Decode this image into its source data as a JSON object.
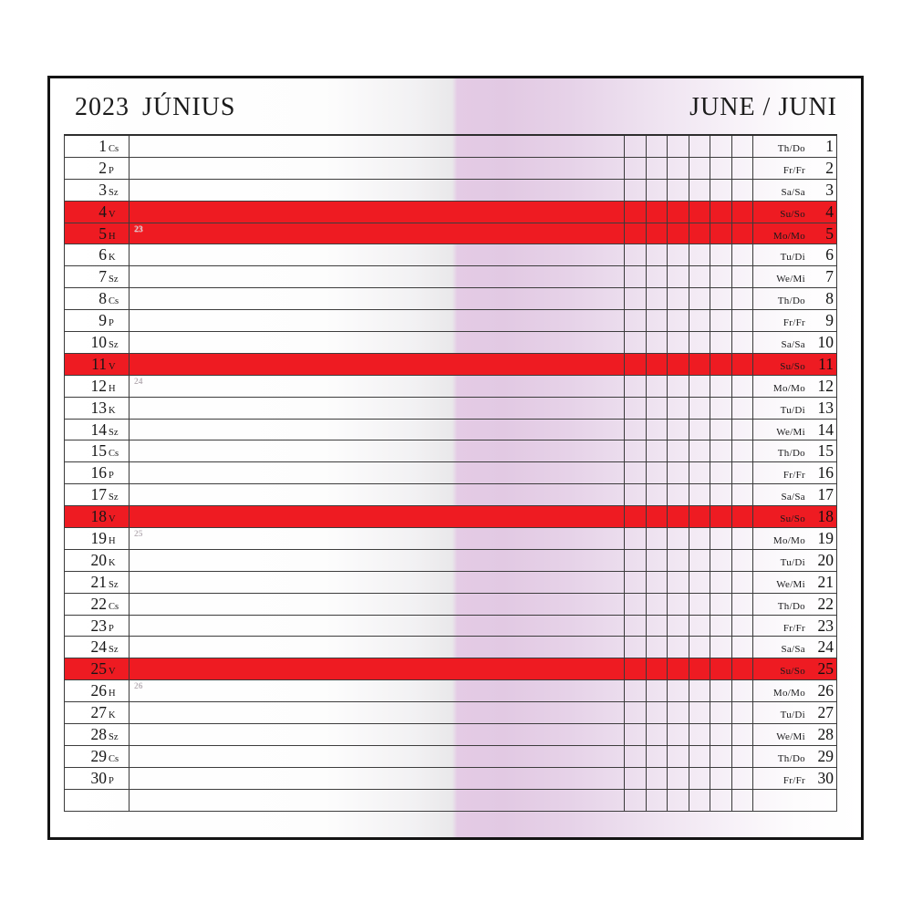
{
  "header": {
    "year": "2023",
    "month_hu": "JÚNIUS",
    "month_en_de": "JUNE / JUNI"
  },
  "colors": {
    "holiday_red": "#ee1b22",
    "fold_lavender": "#e3cae4",
    "grid_line": "#3a3a3a",
    "week_number_gray": "#b9b1b7"
  },
  "calendar": {
    "note_columns": 6,
    "trailing_blank_rows": 1,
    "rows": [
      {
        "day": "1",
        "hu": "Cs",
        "en_de": "Th/Do",
        "holiday": false,
        "week": null
      },
      {
        "day": "2",
        "hu": "P",
        "en_de": "Fr/Fr",
        "holiday": false,
        "week": null
      },
      {
        "day": "3",
        "hu": "Sz",
        "en_de": "Sa/Sa",
        "holiday": false,
        "week": null
      },
      {
        "day": "4",
        "hu": "V",
        "en_de": "Su/So",
        "holiday": true,
        "week": null
      },
      {
        "day": "5",
        "hu": "H",
        "en_de": "Mo/Mo",
        "holiday": true,
        "week": "23"
      },
      {
        "day": "6",
        "hu": "K",
        "en_de": "Tu/Di",
        "holiday": false,
        "week": null
      },
      {
        "day": "7",
        "hu": "Sz",
        "en_de": "We/Mi",
        "holiday": false,
        "week": null
      },
      {
        "day": "8",
        "hu": "Cs",
        "en_de": "Th/Do",
        "holiday": false,
        "week": null
      },
      {
        "day": "9",
        "hu": "P",
        "en_de": "Fr/Fr",
        "holiday": false,
        "week": null
      },
      {
        "day": "10",
        "hu": "Sz",
        "en_de": "Sa/Sa",
        "holiday": false,
        "week": null
      },
      {
        "day": "11",
        "hu": "V",
        "en_de": "Su/So",
        "holiday": true,
        "week": null
      },
      {
        "day": "12",
        "hu": "H",
        "en_de": "Mo/Mo",
        "holiday": false,
        "week": "24"
      },
      {
        "day": "13",
        "hu": "K",
        "en_de": "Tu/Di",
        "holiday": false,
        "week": null
      },
      {
        "day": "14",
        "hu": "Sz",
        "en_de": "We/Mi",
        "holiday": false,
        "week": null
      },
      {
        "day": "15",
        "hu": "Cs",
        "en_de": "Th/Do",
        "holiday": false,
        "week": null
      },
      {
        "day": "16",
        "hu": "P",
        "en_de": "Fr/Fr",
        "holiday": false,
        "week": null
      },
      {
        "day": "17",
        "hu": "Sz",
        "en_de": "Sa/Sa",
        "holiday": false,
        "week": null
      },
      {
        "day": "18",
        "hu": "V",
        "en_de": "Su/So",
        "holiday": true,
        "week": null
      },
      {
        "day": "19",
        "hu": "H",
        "en_de": "Mo/Mo",
        "holiday": false,
        "week": "25"
      },
      {
        "day": "20",
        "hu": "K",
        "en_de": "Tu/Di",
        "holiday": false,
        "week": null
      },
      {
        "day": "21",
        "hu": "Sz",
        "en_de": "We/Mi",
        "holiday": false,
        "week": null
      },
      {
        "day": "22",
        "hu": "Cs",
        "en_de": "Th/Do",
        "holiday": false,
        "week": null
      },
      {
        "day": "23",
        "hu": "P",
        "en_de": "Fr/Fr",
        "holiday": false,
        "week": null
      },
      {
        "day": "24",
        "hu": "Sz",
        "en_de": "Sa/Sa",
        "holiday": false,
        "week": null
      },
      {
        "day": "25",
        "hu": "V",
        "en_de": "Su/So",
        "holiday": true,
        "week": null
      },
      {
        "day": "26",
        "hu": "H",
        "en_de": "Mo/Mo",
        "holiday": false,
        "week": "26"
      },
      {
        "day": "27",
        "hu": "K",
        "en_de": "Tu/Di",
        "holiday": false,
        "week": null
      },
      {
        "day": "28",
        "hu": "Sz",
        "en_de": "We/Mi",
        "holiday": false,
        "week": null
      },
      {
        "day": "29",
        "hu": "Cs",
        "en_de": "Th/Do",
        "holiday": false,
        "week": null
      },
      {
        "day": "30",
        "hu": "P",
        "en_de": "Fr/Fr",
        "holiday": false,
        "week": null
      }
    ]
  }
}
